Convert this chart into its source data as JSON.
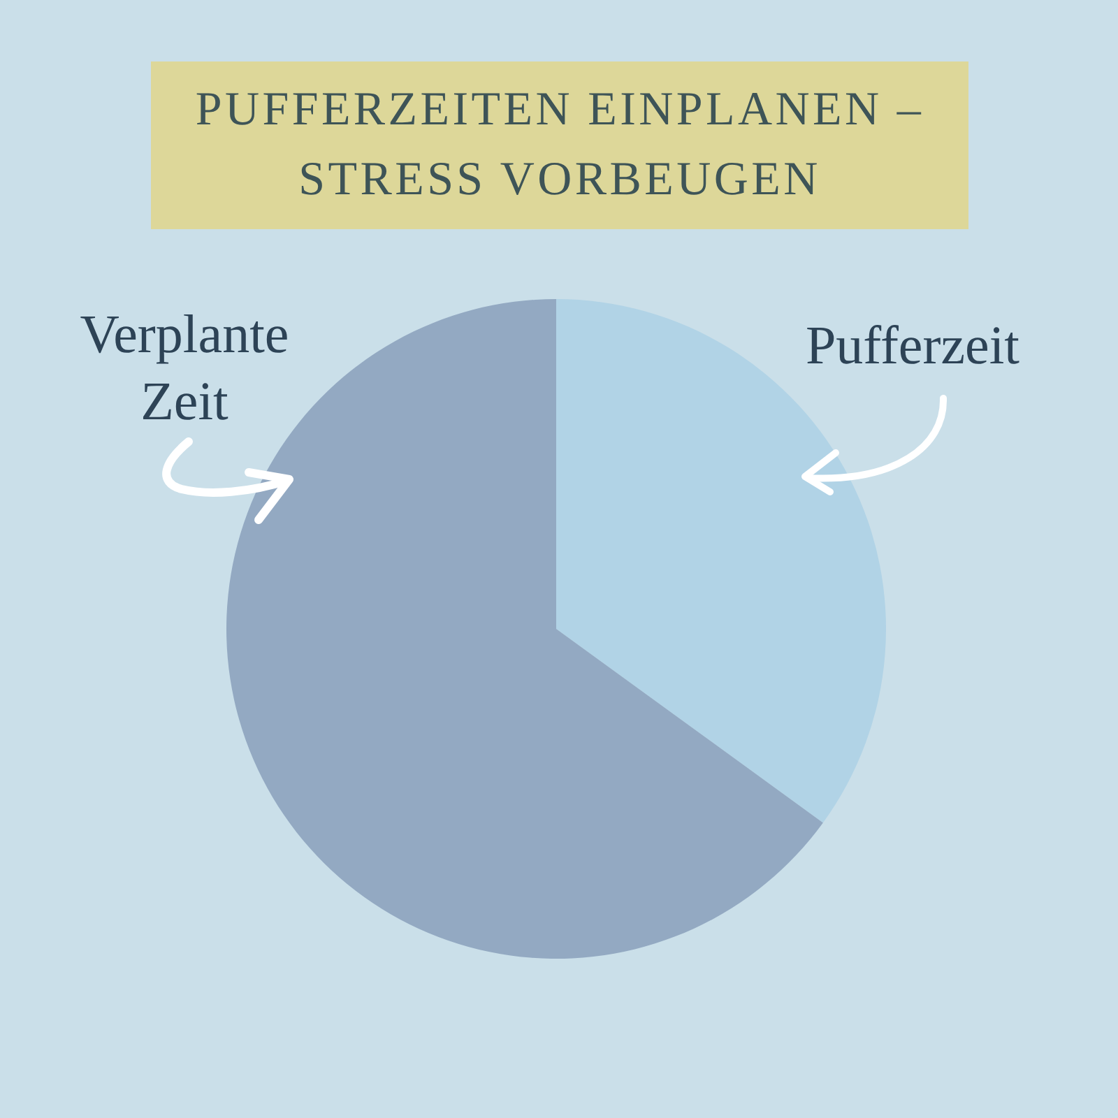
{
  "chart_data": {
    "type": "pie",
    "title": "PUFFERZEITEN EINPLANEN – STRESS VORBEUGEN",
    "categories": [
      "Pufferzeit",
      "Verplante Zeit"
    ],
    "values": [
      35,
      65
    ],
    "colors": [
      "#b1d3e6",
      "#93a9c2"
    ]
  }
}
